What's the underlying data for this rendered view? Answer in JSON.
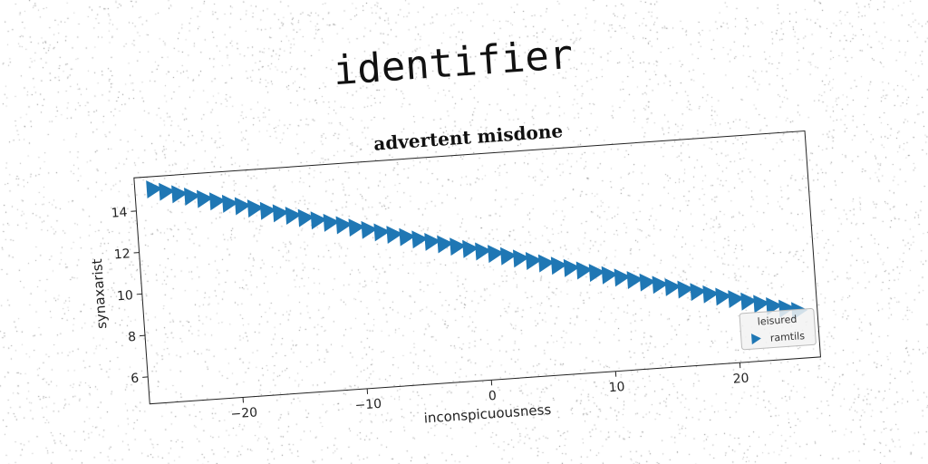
{
  "suptitle": "identifier",
  "chart_data": {
    "type": "scatter",
    "title": "advertent misdone",
    "xlabel": "inconspicuousness",
    "ylabel": "synaxarist",
    "xlim": [
      -27.5,
      26.5
    ],
    "ylim": [
      4.7,
      15.6
    ],
    "xticks": [
      -20,
      -10,
      0,
      10,
      20
    ],
    "yticks": [
      6,
      8,
      10,
      12,
      14
    ],
    "grid": false,
    "marker": "triangle-right",
    "color": "#1f77b4",
    "legend": {
      "title": "leisured",
      "entries": [
        "ramtils"
      ],
      "placement": "lower-right"
    },
    "series": [
      {
        "name": "ramtils",
        "x_start": -26,
        "x_end": 25,
        "x_step": 1,
        "y_start": 15.0,
        "y_end": 7.0
      }
    ]
  }
}
